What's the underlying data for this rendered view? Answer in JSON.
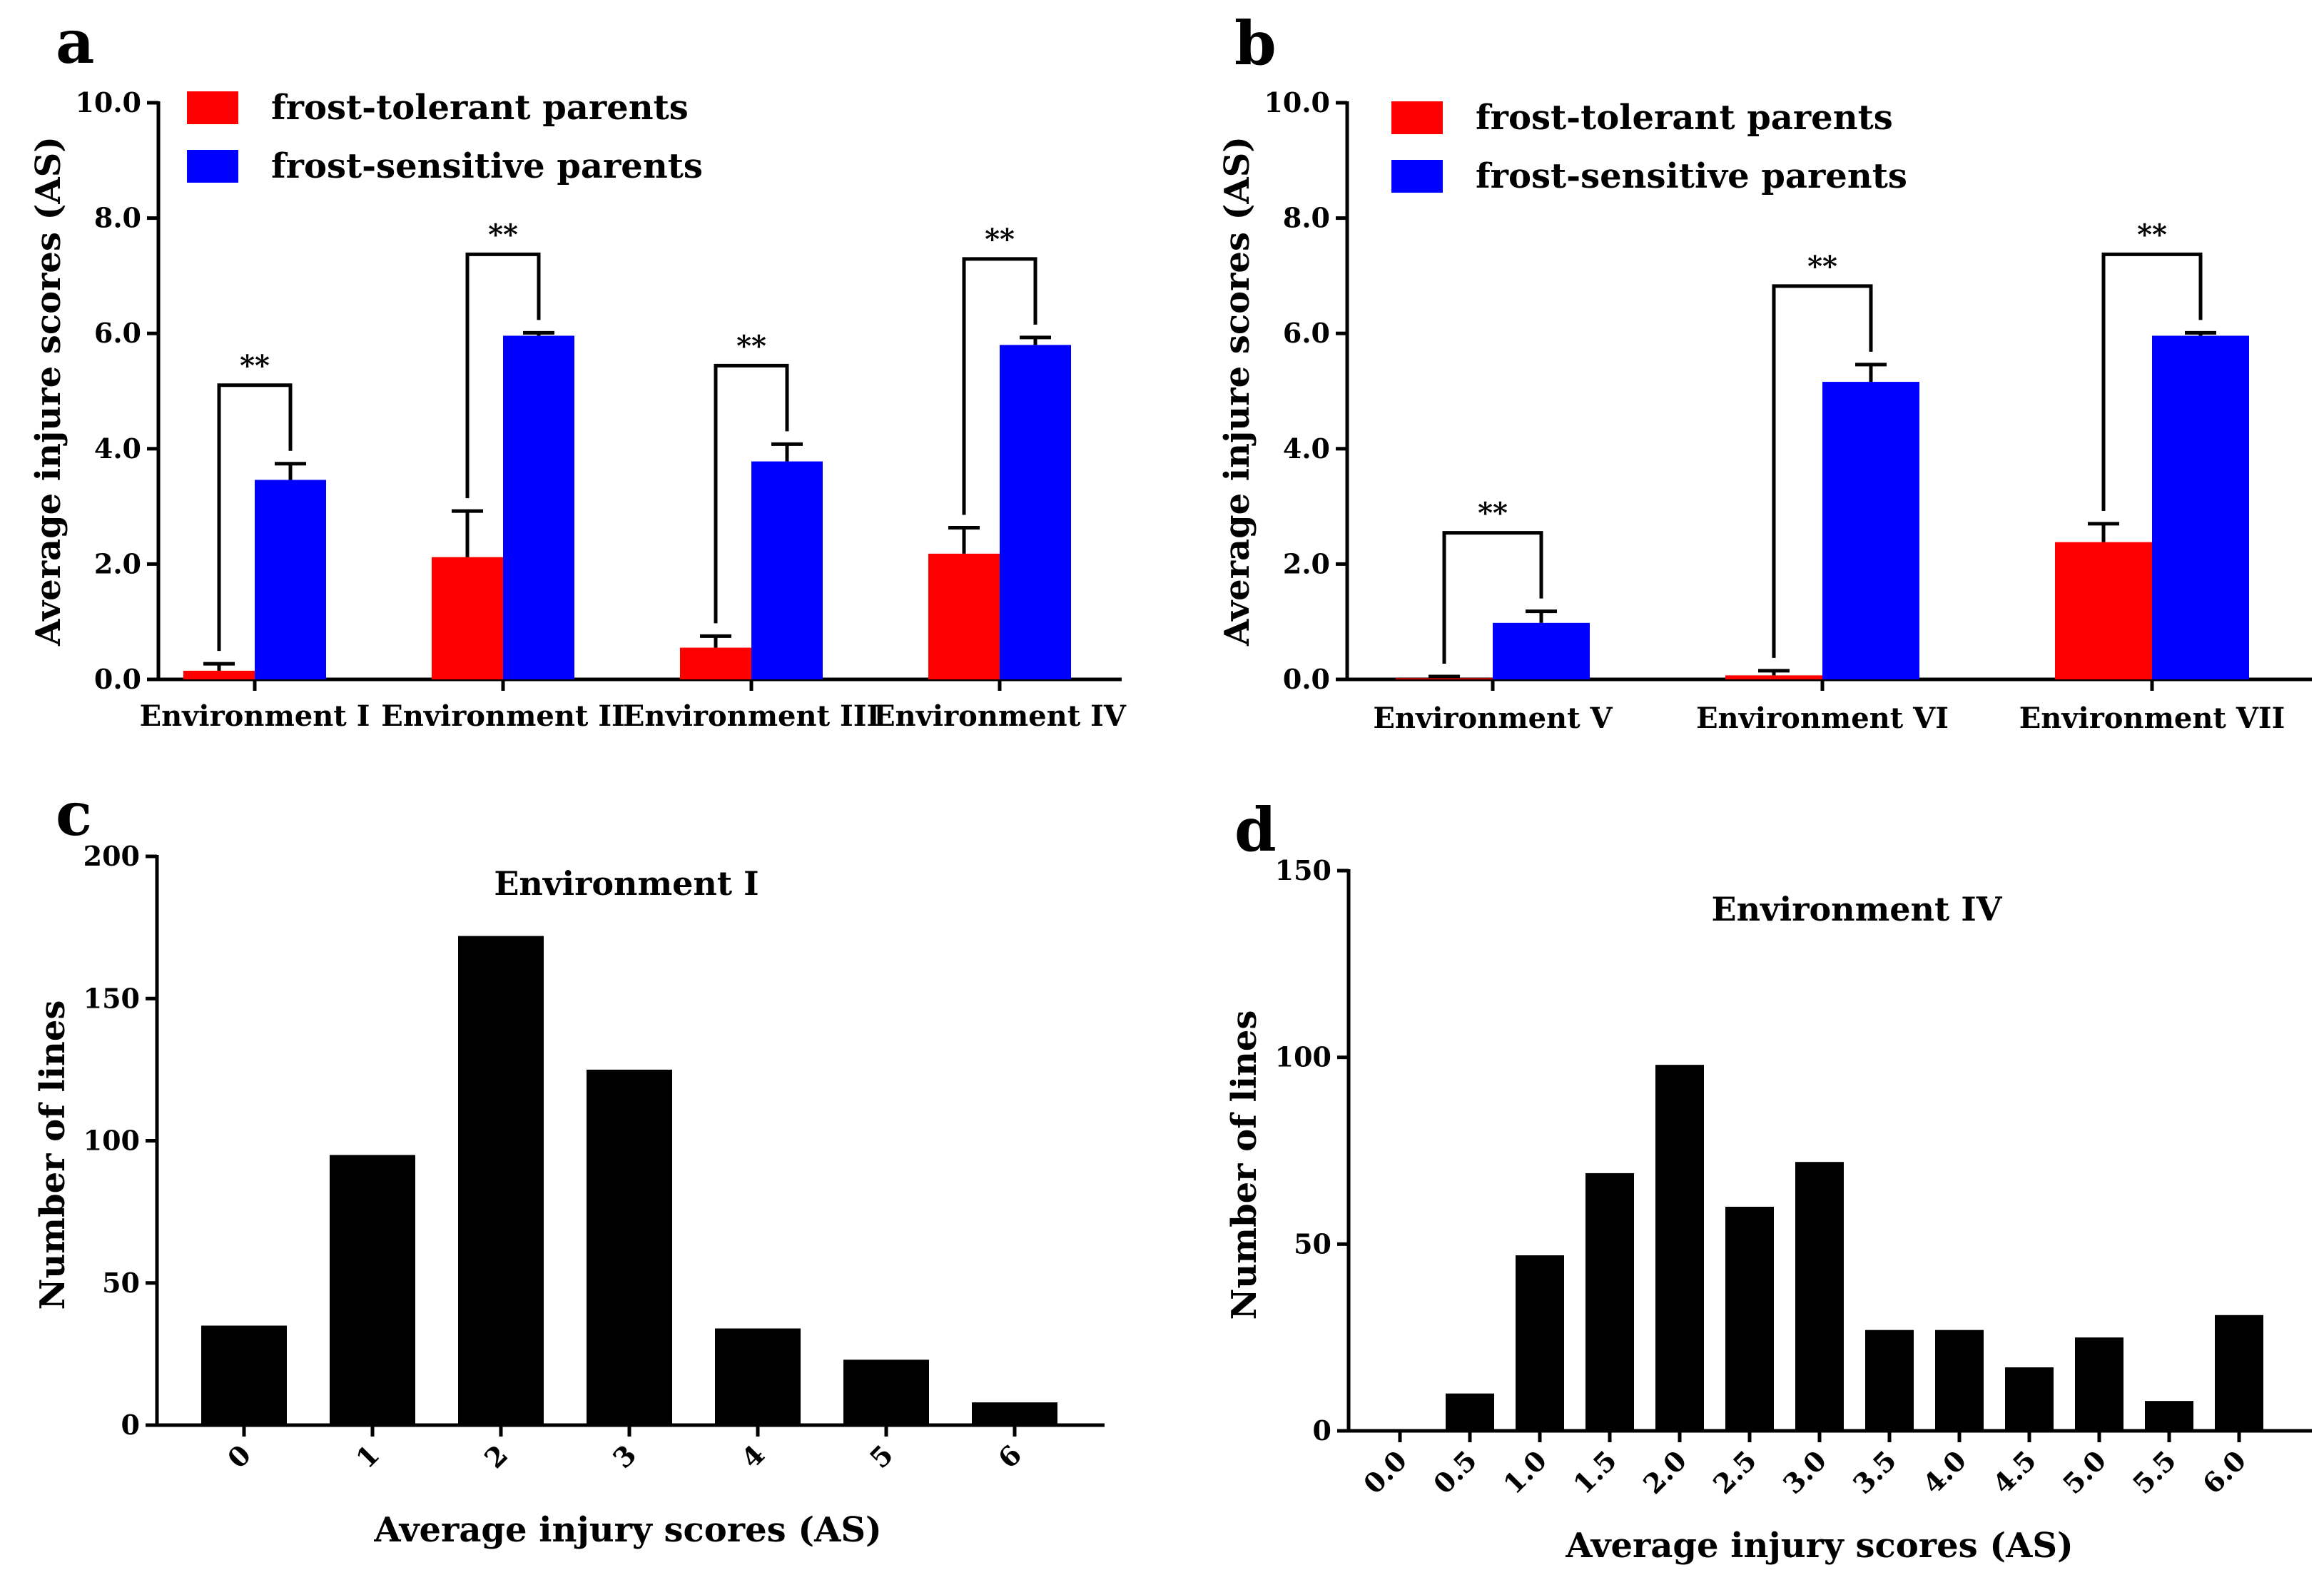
{
  "colors": {
    "tolerant": "#ff0000",
    "sensitive": "#0000ff",
    "bar": "#000000",
    "axis": "#000000"
  },
  "chart_data": [
    {
      "panel": "a",
      "type": "bar",
      "ylabel": "Average injure scores (AS)",
      "ylim": [
        0,
        10
      ],
      "yticks": [
        "0.0",
        "2.0",
        "4.0",
        "6.0",
        "8.0",
        "10.0"
      ],
      "categories": [
        "Environment I",
        "Environment II",
        "Environment III",
        "Environment IV"
      ],
      "series": [
        {
          "name": "frost-tolerant parents",
          "color": "#ff0000",
          "values": [
            0.15,
            2.12,
            0.55,
            2.18
          ],
          "errors": [
            0.12,
            0.8,
            0.2,
            0.45
          ]
        },
        {
          "name": "frost-sensitive parents",
          "color": "#0000ff",
          "values": [
            3.46,
            5.96,
            3.78,
            5.8
          ],
          "errors": [
            0.28,
            0.05,
            0.3,
            0.13
          ]
        }
      ],
      "significance": [
        "**",
        "**",
        "**",
        "**"
      ],
      "legend": "top-left"
    },
    {
      "panel": "b",
      "type": "bar",
      "ylabel": "Average injure scores (AS)",
      "ylim": [
        0,
        10
      ],
      "yticks": [
        "0.0",
        "2.0",
        "4.0",
        "6.0",
        "8.0",
        "10.0"
      ],
      "categories": [
        "Environment  V",
        "Environment  VI",
        "Environment  VII"
      ],
      "series": [
        {
          "name": "frost-tolerant parents",
          "color": "#ff0000",
          "values": [
            0.02,
            0.07,
            2.38
          ],
          "errors": [
            0.03,
            0.08,
            0.32
          ]
        },
        {
          "name": "frost-sensitive parents",
          "color": "#0000ff",
          "values": [
            0.98,
            5.16,
            5.96
          ],
          "errors": [
            0.2,
            0.3,
            0.05
          ]
        }
      ],
      "significance": [
        "**",
        "**",
        "**"
      ],
      "legend": "top-left"
    },
    {
      "panel": "c",
      "type": "bar",
      "title": "Environment I",
      "xlabel": "Average injury scores (AS)",
      "ylabel": "Number of lines",
      "ylim": [
        0,
        200
      ],
      "yticks": [
        "0",
        "50",
        "100",
        "150",
        "200"
      ],
      "categories": [
        "0",
        "1",
        "2",
        "3",
        "4",
        "5",
        "6"
      ],
      "values": [
        35,
        95,
        172,
        125,
        34,
        23,
        8
      ]
    },
    {
      "panel": "d",
      "type": "bar",
      "title": "Environment IV",
      "xlabel": "Average injury scores (AS)",
      "ylabel": "Number of lines",
      "ylim": [
        0,
        150
      ],
      "yticks": [
        "0",
        "50",
        "100",
        "150"
      ],
      "categories": [
        "0.0",
        "0.5",
        "1.0",
        "1.5",
        "2.0",
        "2.5",
        "3.0",
        "3.5",
        "4.0",
        "4.5",
        "5.0",
        "5.5",
        "6.0"
      ],
      "values": [
        0,
        10,
        47,
        69,
        98,
        60,
        72,
        27,
        27,
        17,
        25,
        8,
        31
      ]
    }
  ]
}
